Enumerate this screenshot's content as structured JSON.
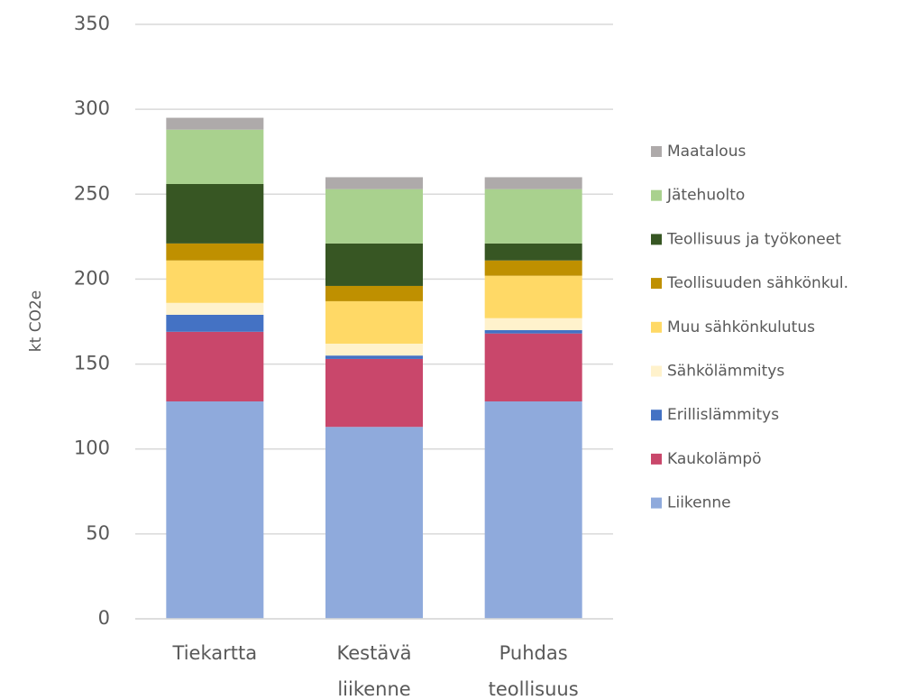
{
  "chart_data": {
    "type": "stacked_bar",
    "y_label": "kt CO2e",
    "categories": [
      "Tiekartta",
      "Kestävä liikenne",
      "Puhdas teollisuus"
    ],
    "series": [
      {
        "name": "Liikenne",
        "color": "#8faadc",
        "values": [
          128,
          113,
          128
        ]
      },
      {
        "name": "Kaukolämpö",
        "color": "#c9476b",
        "values": [
          41,
          40,
          40
        ]
      },
      {
        "name": "Erillislämmitys",
        "color": "#4472c4",
        "values": [
          10,
          2,
          2
        ]
      },
      {
        "name": "Sähkölämmitys",
        "color": "#fff2cc",
        "values": [
          7,
          7,
          7
        ]
      },
      {
        "name": "Muu sähkönkulutus",
        "color": "#ffd966",
        "values": [
          25,
          25,
          25
        ]
      },
      {
        "name": "Teollisuuden sähkönkul.",
        "color": "#bf9000",
        "values": [
          10,
          9,
          9
        ]
      },
      {
        "name": "Teollisuus ja työkoneet",
        "color": "#375623",
        "values": [
          35,
          25,
          10
        ]
      },
      {
        "name": "Jätehuolto",
        "color": "#a9d18e",
        "values": [
          32,
          32,
          32
        ]
      },
      {
        "name": "Maatalous",
        "color": "#aeaaaa",
        "values": [
          7,
          7,
          7
        ]
      }
    ],
    "ylim": [
      0,
      350
    ],
    "yticks": [
      0,
      50,
      100,
      150,
      200,
      250,
      300,
      350
    ],
    "grid": true,
    "legend": "right"
  }
}
